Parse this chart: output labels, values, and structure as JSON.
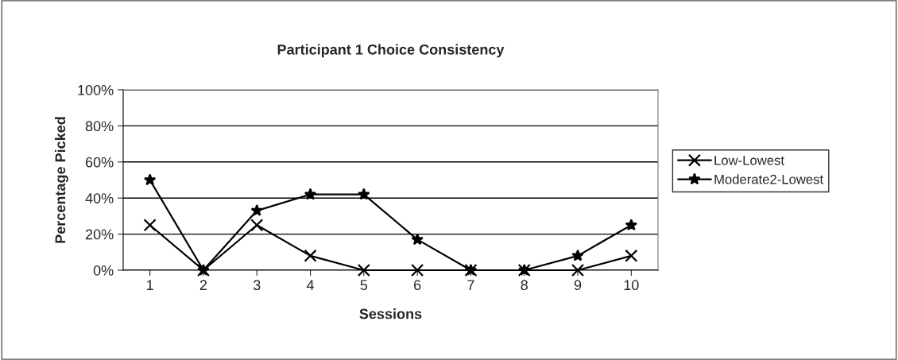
{
  "chart_data": {
    "type": "line",
    "title": "Participant 1 Choice Consistency",
    "xlabel": "Sessions",
    "ylabel": "Percentage Picked",
    "categories": [
      "1",
      "2",
      "3",
      "4",
      "5",
      "6",
      "7",
      "8",
      "9",
      "10"
    ],
    "series": [
      {
        "name": "Low-Lowest",
        "color": "#000000",
        "marker": "cross",
        "values": [
          25,
          0,
          25,
          8,
          0,
          0,
          0,
          0,
          0,
          8
        ]
      },
      {
        "name": "Moderate2-Lowest",
        "color": "#000000",
        "marker": "star",
        "values": [
          50,
          0,
          33,
          42,
          42,
          17,
          0,
          0,
          8,
          25
        ]
      }
    ],
    "ylim": [
      0,
      100
    ],
    "yticks": [
      {
        "value": 0,
        "label": "0%"
      },
      {
        "value": 20,
        "label": "20%"
      },
      {
        "value": 40,
        "label": "40%"
      },
      {
        "value": 60,
        "label": "60%"
      },
      {
        "value": 80,
        "label": "80%"
      },
      {
        "value": 100,
        "label": "100%"
      }
    ],
    "grid": "y",
    "legend": "right",
    "line_style": "solid"
  }
}
